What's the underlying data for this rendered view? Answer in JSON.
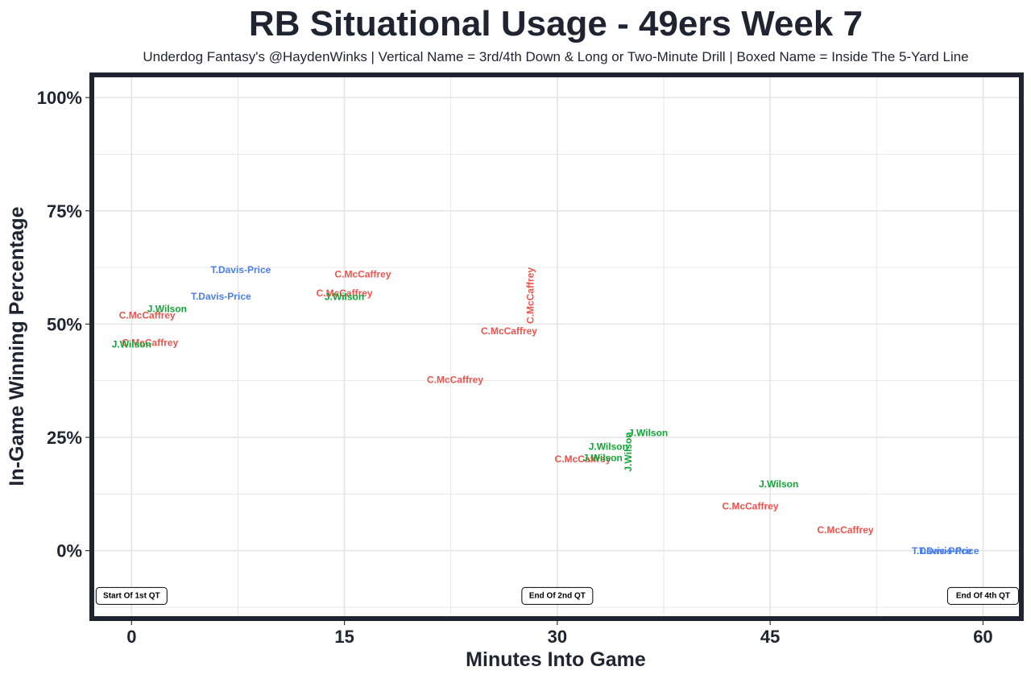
{
  "chart_data": {
    "type": "scatter",
    "title": "RB Situational Usage - 49ers Week 7",
    "subtitle": "Underdog Fantasy's @HaydenWinks | Vertical Name = 3rd/4th Down & Long or Two-Minute Drill | Boxed Name = Inside The 5-Yard Line",
    "xlabel": "Minutes Into Game",
    "ylabel": "In-Game Winning Percentage",
    "xlim": [
      -2.8,
      62.7
    ],
    "ylim": [
      -15,
      105
    ],
    "x_ticks": [
      0,
      15,
      30,
      45,
      60
    ],
    "x_tick_labels": [
      "0",
      "15",
      "30",
      "45",
      "60"
    ],
    "y_ticks": [
      0,
      25,
      50,
      75,
      100
    ],
    "y_tick_labels": [
      "0%",
      "25%",
      "50%",
      "75%",
      "100%"
    ],
    "grid": true,
    "colors": {
      "C.McCaffrey": "#e8554e",
      "J.Wilson": "#13a538",
      "T.Davis-Price": "#4a7fe8",
      "border": "#1f2430",
      "grid": "#e4e4e4"
    },
    "points": [
      {
        "player": "C.McCaffrey",
        "x": 1.3,
        "y": 45.9,
        "vertical": false
      },
      {
        "player": "J.Wilson",
        "x": 0.0,
        "y": 45.5,
        "vertical": false
      },
      {
        "player": "C.McCaffrey",
        "x": 1.1,
        "y": 51.9,
        "vertical": false
      },
      {
        "player": "J.Wilson",
        "x": 2.5,
        "y": 53.4,
        "vertical": false
      },
      {
        "player": "T.Davis-Price",
        "x": 6.3,
        "y": 56.1,
        "vertical": false
      },
      {
        "player": "T.Davis-Price",
        "x": 7.7,
        "y": 62.0,
        "vertical": false
      },
      {
        "player": "C.McCaffrey",
        "x": 15.0,
        "y": 56.8,
        "vertical": false
      },
      {
        "player": "J.Wilson",
        "x": 15.0,
        "y": 56.0,
        "vertical": false
      },
      {
        "player": "C.McCaffrey",
        "x": 16.3,
        "y": 61.0,
        "vertical": false
      },
      {
        "player": "C.McCaffrey",
        "x": 22.8,
        "y": 37.7,
        "vertical": false
      },
      {
        "player": "C.McCaffrey",
        "x": 26.6,
        "y": 48.5,
        "vertical": false
      },
      {
        "player": "C.McCaffrey",
        "x": 28.1,
        "y": 56.3,
        "vertical": true
      },
      {
        "player": "C.McCaffrey",
        "x": 31.8,
        "y": 20.2,
        "vertical": false
      },
      {
        "player": "J.Wilson",
        "x": 33.2,
        "y": 20.5,
        "vertical": false
      },
      {
        "player": "J.Wilson",
        "x": 33.6,
        "y": 23.0,
        "vertical": false
      },
      {
        "player": "J.Wilson",
        "x": 35.0,
        "y": 21.8,
        "vertical": true
      },
      {
        "player": "J.Wilson",
        "x": 36.4,
        "y": 26.0,
        "vertical": false
      },
      {
        "player": "J.Wilson",
        "x": 45.6,
        "y": 14.7,
        "vertical": false
      },
      {
        "player": "C.McCaffrey",
        "x": 43.6,
        "y": 9.8,
        "vertical": false
      },
      {
        "player": "C.McCaffrey",
        "x": 50.3,
        "y": 4.6,
        "vertical": false
      },
      {
        "player": "T.Davis-Price",
        "x": 57.1,
        "y": -0.1,
        "vertical": false
      },
      {
        "player": "T.Davis-Price",
        "x": 57.6,
        "y": -0.1,
        "vertical": false
      }
    ],
    "annotations": [
      {
        "text": "Start Of 1st QT",
        "x": 0,
        "y": -10
      },
      {
        "text": "End Of 2nd QT",
        "x": 30,
        "y": -10
      },
      {
        "text": "End Of 4th QT",
        "x": 60,
        "y": -10
      }
    ]
  }
}
